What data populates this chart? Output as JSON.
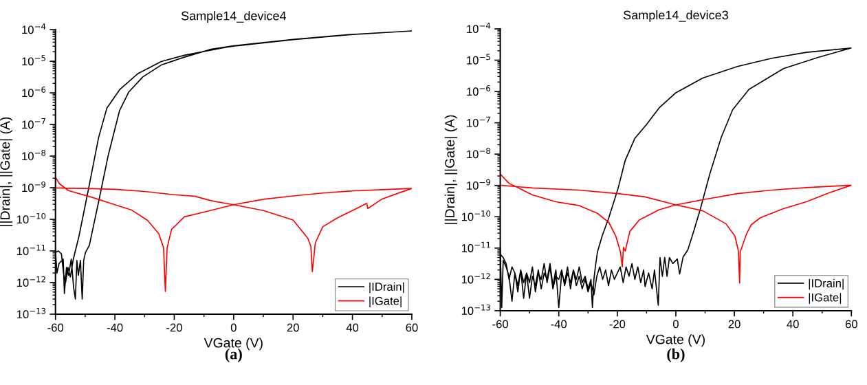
{
  "chart_data": [
    {
      "type": "line",
      "title": "Sample14_device4",
      "xlabel": "VGate (V)",
      "ylabel": "||Drain|, ||Gate| (A)",
      "annotations": [
        "(a)"
      ],
      "log": "y",
      "grid": false,
      "legend": "bottom right",
      "line_style": "solid",
      "marker": "none",
      "xlim": [
        -60,
        60
      ],
      "xticks": [
        -60,
        -40,
        -20,
        0,
        20,
        40,
        60
      ],
      "ylim": [
        1e-13,
        0.0001
      ],
      "yticks": [
        {
          "value": 1e-13,
          "label": "10$^{−13}$"
        },
        {
          "value": 1e-12,
          "label": "10$^{−12}$"
        },
        {
          "value": 1e-11,
          "label": "10$^{−11}$"
        },
        {
          "value": 1e-10,
          "label": "10$^{−10}$"
        },
        {
          "value": 1e-09,
          "label": "10$^{−9}$"
        },
        {
          "value": 1e-08,
          "label": "10$^{−8}$"
        },
        {
          "value": 1e-07,
          "label": "10$^{−7}$"
        },
        {
          "value": 1e-06,
          "label": "10$^{−6}$"
        },
        {
          "value": 1e-05,
          "label": "10$^{−5}$"
        },
        {
          "value": 0.0001,
          "label": "10$^{−4}$"
        }
      ],
      "series": [
        {
          "name": "|IDrain|",
          "color": "#000000",
          "x": [
            -60,
            -59.5,
            -58.8,
            -57.4,
            -57.0,
            -56.3,
            -55.6,
            -54.7,
            -53.9,
            -53.3,
            -52.8,
            -52.3,
            -51.6,
            -51.0,
            -50.5,
            -49.9,
            -48.6,
            -45.5,
            -42.3,
            -38.4,
            -35.3,
            -30.6,
            -24.4,
            -16.6,
            -7.6,
            0,
            20,
            40,
            60,
            40,
            20,
            0,
            -2.8,
            -16.6,
            -24.4,
            -32.2,
            -38.4,
            -42.7,
            -45.5,
            -49,
            -52.1,
            -54,
            -55,
            -55.8,
            -56.6,
            -57.3,
            -58,
            -59,
            -60
          ],
          "values": [
            1e-11,
            2e-12,
            4e-12,
            5.5e-12,
            4.5e-13,
            3e-12,
            1.7e-12,
            5.5e-12,
            7e-13,
            3e-13,
            5e-12,
            1.7e-12,
            5e-12,
            3e-13,
            5e-12,
            9e-12,
            1.5e-11,
            3.5e-10,
            1e-08,
            2.8e-07,
            1.07e-06,
            3.2e-06,
            7.6e-06,
            1.35e-05,
            2.4e-05,
            3.1e-05,
            4.9e-05,
            7.1e-05,
            9.1e-05,
            7e-05,
            4.8e-05,
            3e-05,
            2.75e-05,
            1.55e-05,
            9.8e-06,
            4.1e-06,
            1.26e-06,
            3.3e-07,
            3.8e-08,
            8e-10,
            2.9e-11,
            5.5e-12,
            1.5e-12,
            3e-12,
            1e-12,
            2e-12,
            8e-12,
            1e-11,
            9e-12
          ]
        },
        {
          "name": "|IGate|",
          "color": "#ff0000",
          "x": [
            -60,
            -58.75,
            -55.6,
            -47.8,
            -40,
            -34.5,
            -29,
            -25.2,
            -23.6,
            -23,
            -22.4,
            -20.9,
            -16.6,
            -8.8,
            0,
            10,
            20,
            30,
            40,
            50,
            60,
            55,
            50,
            45.2,
            44.8,
            40,
            35,
            30,
            27.5,
            26.5,
            26,
            25,
            20,
            10,
            0,
            -2.8,
            -7.6,
            -13.2,
            -20,
            -30,
            -40,
            -50,
            -60
          ],
          "values": [
            2.2e-09,
            1.35e-09,
            8.1e-10,
            5e-10,
            2.9e-10,
            2e-10,
            9.3e-11,
            3.5e-11,
            1.26e-11,
            5.2e-13,
            1.26e-11,
            4.8e-11,
            1.2e-10,
            1.8e-10,
            2.9e-10,
            4.3e-10,
            5.5e-10,
            6.8e-10,
            7.9e-10,
            8.7e-10,
            9.5e-10,
            6.5e-10,
            4.4e-10,
            2.2e-10,
            3.2e-10,
            1.9e-10,
            1.12e-10,
            5.8e-11,
            1.8e-11,
            2.2e-12,
            1.4e-11,
            2.5e-11,
            9.5e-11,
            1.9e-10,
            2.9e-10,
            3.2e-10,
            3.9e-10,
            5.4e-10,
            6e-10,
            7.6e-10,
            8.9e-10,
            9.5e-10,
            9.8e-10
          ]
        }
      ]
    },
    {
      "type": "line",
      "title": "Sample14_device3",
      "xlabel": "VGate (V)",
      "ylabel": "||Drain|, ||Gate| (A)",
      "annotations": [
        "(b)"
      ],
      "log": "y",
      "grid": false,
      "legend": "bottom right",
      "line_style": "solid",
      "marker": "none",
      "xlim": [
        -60,
        60
      ],
      "xticks": [
        -60,
        -40,
        -20,
        0,
        20,
        40,
        60
      ],
      "ylim": [
        1e-13,
        0.0001
      ],
      "yticks": [
        {
          "value": 1e-13,
          "label": "10$^{−13}$"
        },
        {
          "value": 1e-12,
          "label": "10$^{−12}$"
        },
        {
          "value": 1e-11,
          "label": "10$^{−11}$"
        },
        {
          "value": 1e-10,
          "label": "10$^{−10}$"
        },
        {
          "value": 1e-09,
          "label": "10$^{−9}$"
        },
        {
          "value": 1e-08,
          "label": "10$^{−8}$"
        },
        {
          "value": 1e-07,
          "label": "10$^{−7}$"
        },
        {
          "value": 1e-06,
          "label": "10$^{−6}$"
        },
        {
          "value": 1e-05,
          "label": "10$^{−5}$"
        },
        {
          "value": 0.0001,
          "label": "10$^{−4}$"
        }
      ],
      "series": [
        {
          "name": "|IDrain|",
          "color": "#000000",
          "x": [
            -60,
            -59.5,
            -59,
            -58,
            -57,
            -56,
            -55,
            -54,
            -53,
            -52,
            -51,
            -50,
            -49,
            -48,
            -47,
            -46,
            -45,
            -44,
            -43,
            -42,
            -41,
            -40,
            -39,
            -38,
            -37,
            -36,
            -35,
            -34,
            -33,
            -32,
            -31,
            -30,
            -29,
            -28,
            -27,
            -26,
            -25,
            -24,
            -23,
            -22,
            -21,
            -20,
            -19,
            -18,
            -17,
            -16,
            -15,
            -14,
            -13,
            -12,
            -11,
            -10.5,
            -9.3,
            -8.1,
            -7.3,
            -6,
            -5.4,
            -4.6,
            -3.8,
            -3,
            -2.2,
            -1,
            0.5,
            1.3,
            2.5,
            4.1,
            6.1,
            8.4,
            11.6,
            15.5,
            19.4,
            25,
            36.8,
            48.6,
            60,
            44.6,
            32.8,
            21,
            9.2,
            0,
            -5.7,
            -10,
            -14,
            -17.3,
            -19.7,
            -22.9,
            -25.2,
            -26.8,
            -27.5,
            -28,
            -28.5,
            -29,
            -30,
            -31,
            -32,
            -33,
            -34,
            -35,
            -36,
            -37,
            -38,
            -39,
            -40,
            -41,
            -42,
            -43,
            -44,
            -45,
            -46,
            -47,
            -48,
            -49,
            -50,
            -51,
            -52,
            -53,
            -54,
            -55,
            -56,
            -57,
            -58,
            -59,
            -60
          ],
          "values": [
            1e-11,
            1.26e-13,
            4e-12,
            2.5e-12,
            1.26e-12,
            2e-13,
            1.6e-12,
            6.3e-13,
            2e-12,
            2.5e-13,
            1.6e-12,
            7.9e-13,
            2.5e-12,
            4e-13,
            1.6e-12,
            1e-12,
            3.2e-12,
            7.9e-13,
            2.5e-12,
            5e-13,
            1.26e-12,
            1e-12,
            2e-12,
            6.3e-13,
            1.6e-12,
            7.9e-13,
            2e-12,
            6.3e-13,
            1.26e-12,
            5e-13,
            1e-12,
            4e-13,
            7.9e-13,
            3.2e-13,
            1.26e-12,
            2.5e-12,
            1e-12,
            2e-12,
            6.3e-13,
            2e-12,
            1e-12,
            1.6e-12,
            2.5e-12,
            7.9e-13,
            2.5e-12,
            1.26e-12,
            3.2e-12,
            1e-12,
            2.5e-12,
            7.9e-13,
            2e-12,
            5.9e-13,
            1.6e-12,
            5e-13,
            2e-12,
            1.5e-13,
            5e-12,
            1.26e-12,
            5e-12,
            1.26e-12,
            5e-12,
            3.2e-12,
            4.5e-12,
            1.5e-12,
            5.2e-12,
            8.7e-12,
            3.4e-11,
            1.8e-10,
            2.3e-09,
            3.4e-08,
            2.6e-07,
            1.17e-06,
            5.4e-06,
            1.23e-05,
            2.45e-05,
            1.78e-05,
            1.15e-05,
            6.3e-06,
            2.7e-06,
            9.1e-07,
            3e-07,
            8.9e-08,
            3.2e-08,
            6.3e-09,
            8.3e-10,
            9.3e-11,
            2.4e-11,
            7.4e-12,
            2.5e-12,
            1e-12,
            1.26e-13,
            1e-12,
            5e-13,
            1.26e-12,
            7.9e-13,
            2.5e-12,
            1e-12,
            2e-12,
            5e-13,
            2.5e-12,
            7.9e-13,
            1.6e-12,
            1.26e-13,
            2e-12,
            6.3e-13,
            3.2e-12,
            1e-12,
            1.6e-12,
            5e-13,
            2e-12,
            6.3e-13,
            1.26e-12,
            2.5e-13,
            1.6e-12,
            7.9e-13,
            2e-12,
            4e-13,
            1.6e-12,
            2.5e-12,
            1e-12,
            3.2e-12,
            5e-12,
            6.3e-12
          ]
        },
        {
          "name": "|IGate|",
          "color": "#ff0000",
          "x": [
            -60,
            -57,
            -49,
            -41,
            -33.2,
            -26.8,
            -22.9,
            -20.5,
            -18.9,
            -18.3,
            -17.9,
            -17.3,
            -15.7,
            -12.5,
            -5.8,
            0,
            9.2,
            21,
            32.8,
            44.6,
            60,
            52.5,
            44.6,
            36.8,
            28.9,
            25.8,
            24.2,
            22,
            21.8,
            21.4,
            20.2,
            17.1,
            9.2,
            0,
            -10.5,
            -19.7,
            -33.2,
            -49,
            -60
          ],
          "values": [
            2.3e-09,
            1.17e-09,
            5e-10,
            3e-10,
            2.3e-10,
            1.29e-10,
            6.6e-11,
            2.4e-11,
            7.4e-12,
            2.5e-12,
            1.05e-11,
            8e-12,
            3.4e-11,
            7.9e-11,
            1.66e-10,
            2.4e-10,
            3.5e-10,
            5.5e-10,
            7.1e-10,
            8.5e-10,
            1.02e-09,
            5.9e-10,
            3e-10,
            1.82e-10,
            9.3e-11,
            5.6e-11,
            2.9e-11,
            7.4e-12,
            7.6e-13,
            8e-12,
            2.4e-11,
            6e-11,
            1.55e-10,
            2.4e-10,
            4.3e-10,
            5.5e-10,
            7.1e-10,
            8.3e-10,
            1.02e-09
          ]
        }
      ]
    }
  ]
}
